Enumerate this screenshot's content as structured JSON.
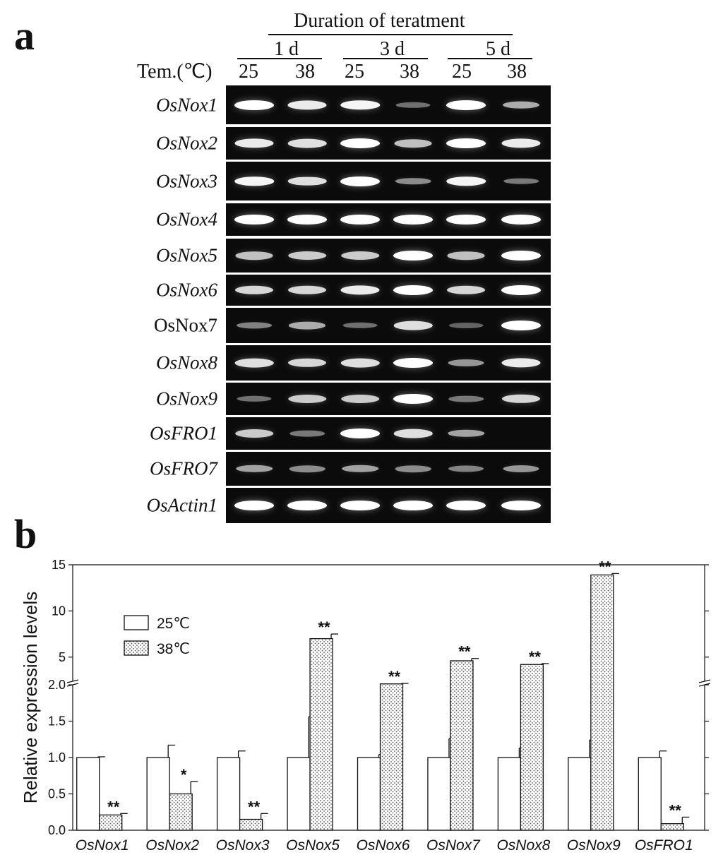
{
  "panels": {
    "a": "a",
    "b": "b"
  },
  "gel": {
    "duration_title": "Duration of teratment",
    "durations": [
      "1 d",
      "3 d",
      "5 d"
    ],
    "tem_label": "Tem.(℃)",
    "temps": [
      "25",
      "38",
      "25",
      "38",
      "25",
      "38"
    ],
    "genes": [
      {
        "name": "OsNox1",
        "italic": true,
        "intensity": [
          1.0,
          0.9,
          0.95,
          0.3,
          1.0,
          0.6
        ]
      },
      {
        "name": "OsNox2",
        "italic": true,
        "intensity": [
          0.9,
          0.85,
          1.0,
          0.7,
          1.0,
          0.9
        ]
      },
      {
        "name": "OsNox3",
        "italic": true,
        "intensity": [
          0.95,
          0.85,
          1.0,
          0.45,
          0.95,
          0.35
        ]
      },
      {
        "name": "OsNox4",
        "italic": true,
        "intensity": [
          1.0,
          1.0,
          1.0,
          1.0,
          1.0,
          1.0
        ]
      },
      {
        "name": "OsNox5",
        "italic": true,
        "intensity": [
          0.7,
          0.75,
          0.75,
          1.0,
          0.7,
          1.0
        ]
      },
      {
        "name": "OsNox6",
        "italic": true,
        "intensity": [
          0.8,
          0.8,
          0.9,
          1.0,
          0.8,
          1.0
        ]
      },
      {
        "name": "OsNox7",
        "italic": false,
        "intensity": [
          0.4,
          0.6,
          0.3,
          0.85,
          0.25,
          1.0
        ]
      },
      {
        "name": "OsNox8",
        "italic": true,
        "intensity": [
          0.85,
          0.8,
          0.85,
          1.0,
          0.5,
          0.9
        ]
      },
      {
        "name": "OsNox9",
        "italic": true,
        "intensity": [
          0.3,
          0.75,
          0.75,
          1.0,
          0.35,
          0.8
        ]
      },
      {
        "name": "OsFRO1",
        "italic": true,
        "intensity": [
          0.75,
          0.35,
          1.0,
          0.85,
          0.55,
          0.0
        ]
      },
      {
        "name": "OsFRO7",
        "italic": true,
        "intensity": [
          0.55,
          0.45,
          0.55,
          0.45,
          0.4,
          0.5
        ]
      },
      {
        "name": "OsActin1",
        "italic": true,
        "intensity": [
          1.0,
          1.0,
          1.0,
          1.0,
          1.0,
          1.0
        ]
      }
    ]
  },
  "chart_data": {
    "type": "bar",
    "ylabel": "Relative expression levels",
    "broken_axis": {
      "lower_range": [
        0,
        2.0
      ],
      "upper_range": [
        2.0,
        15
      ]
    },
    "lower_ticks": [
      "0.0",
      "0.5",
      "1.0",
      "1.5",
      "2.0"
    ],
    "upper_ticks": [
      "5",
      "10",
      "15"
    ],
    "categories": [
      "OsNox1",
      "OsNox2",
      "OsNox3",
      "OsNox5",
      "OsNox6",
      "OsNox7",
      "OsNox8",
      "OsNox9",
      "OsFRO1"
    ],
    "legend_position": "upper-left",
    "series": [
      {
        "name": "25℃",
        "pattern": "open",
        "values": [
          1.0,
          1.0,
          1.0,
          1.0,
          1.0,
          1.0,
          1.0,
          1.0,
          1.0
        ],
        "errors": [
          0.01,
          0.17,
          0.09,
          0.56,
          0.04,
          0.26,
          0.13,
          0.24,
          0.09
        ]
      },
      {
        "name": "38℃",
        "pattern": "dotted",
        "values": [
          0.21,
          0.5,
          0.15,
          7.0,
          2.1,
          4.6,
          4.2,
          13.9,
          0.09
        ],
        "errors": [
          0.02,
          0.17,
          0.08,
          0.5,
          0.05,
          0.25,
          0.1,
          0.15,
          0.09
        ],
        "significance": [
          "**",
          "*",
          "**",
          "**",
          "**",
          "**",
          "**",
          "**",
          "**"
        ]
      }
    ],
    "colors": {
      "bar_edge": "#111111",
      "dot": "#555555"
    }
  }
}
